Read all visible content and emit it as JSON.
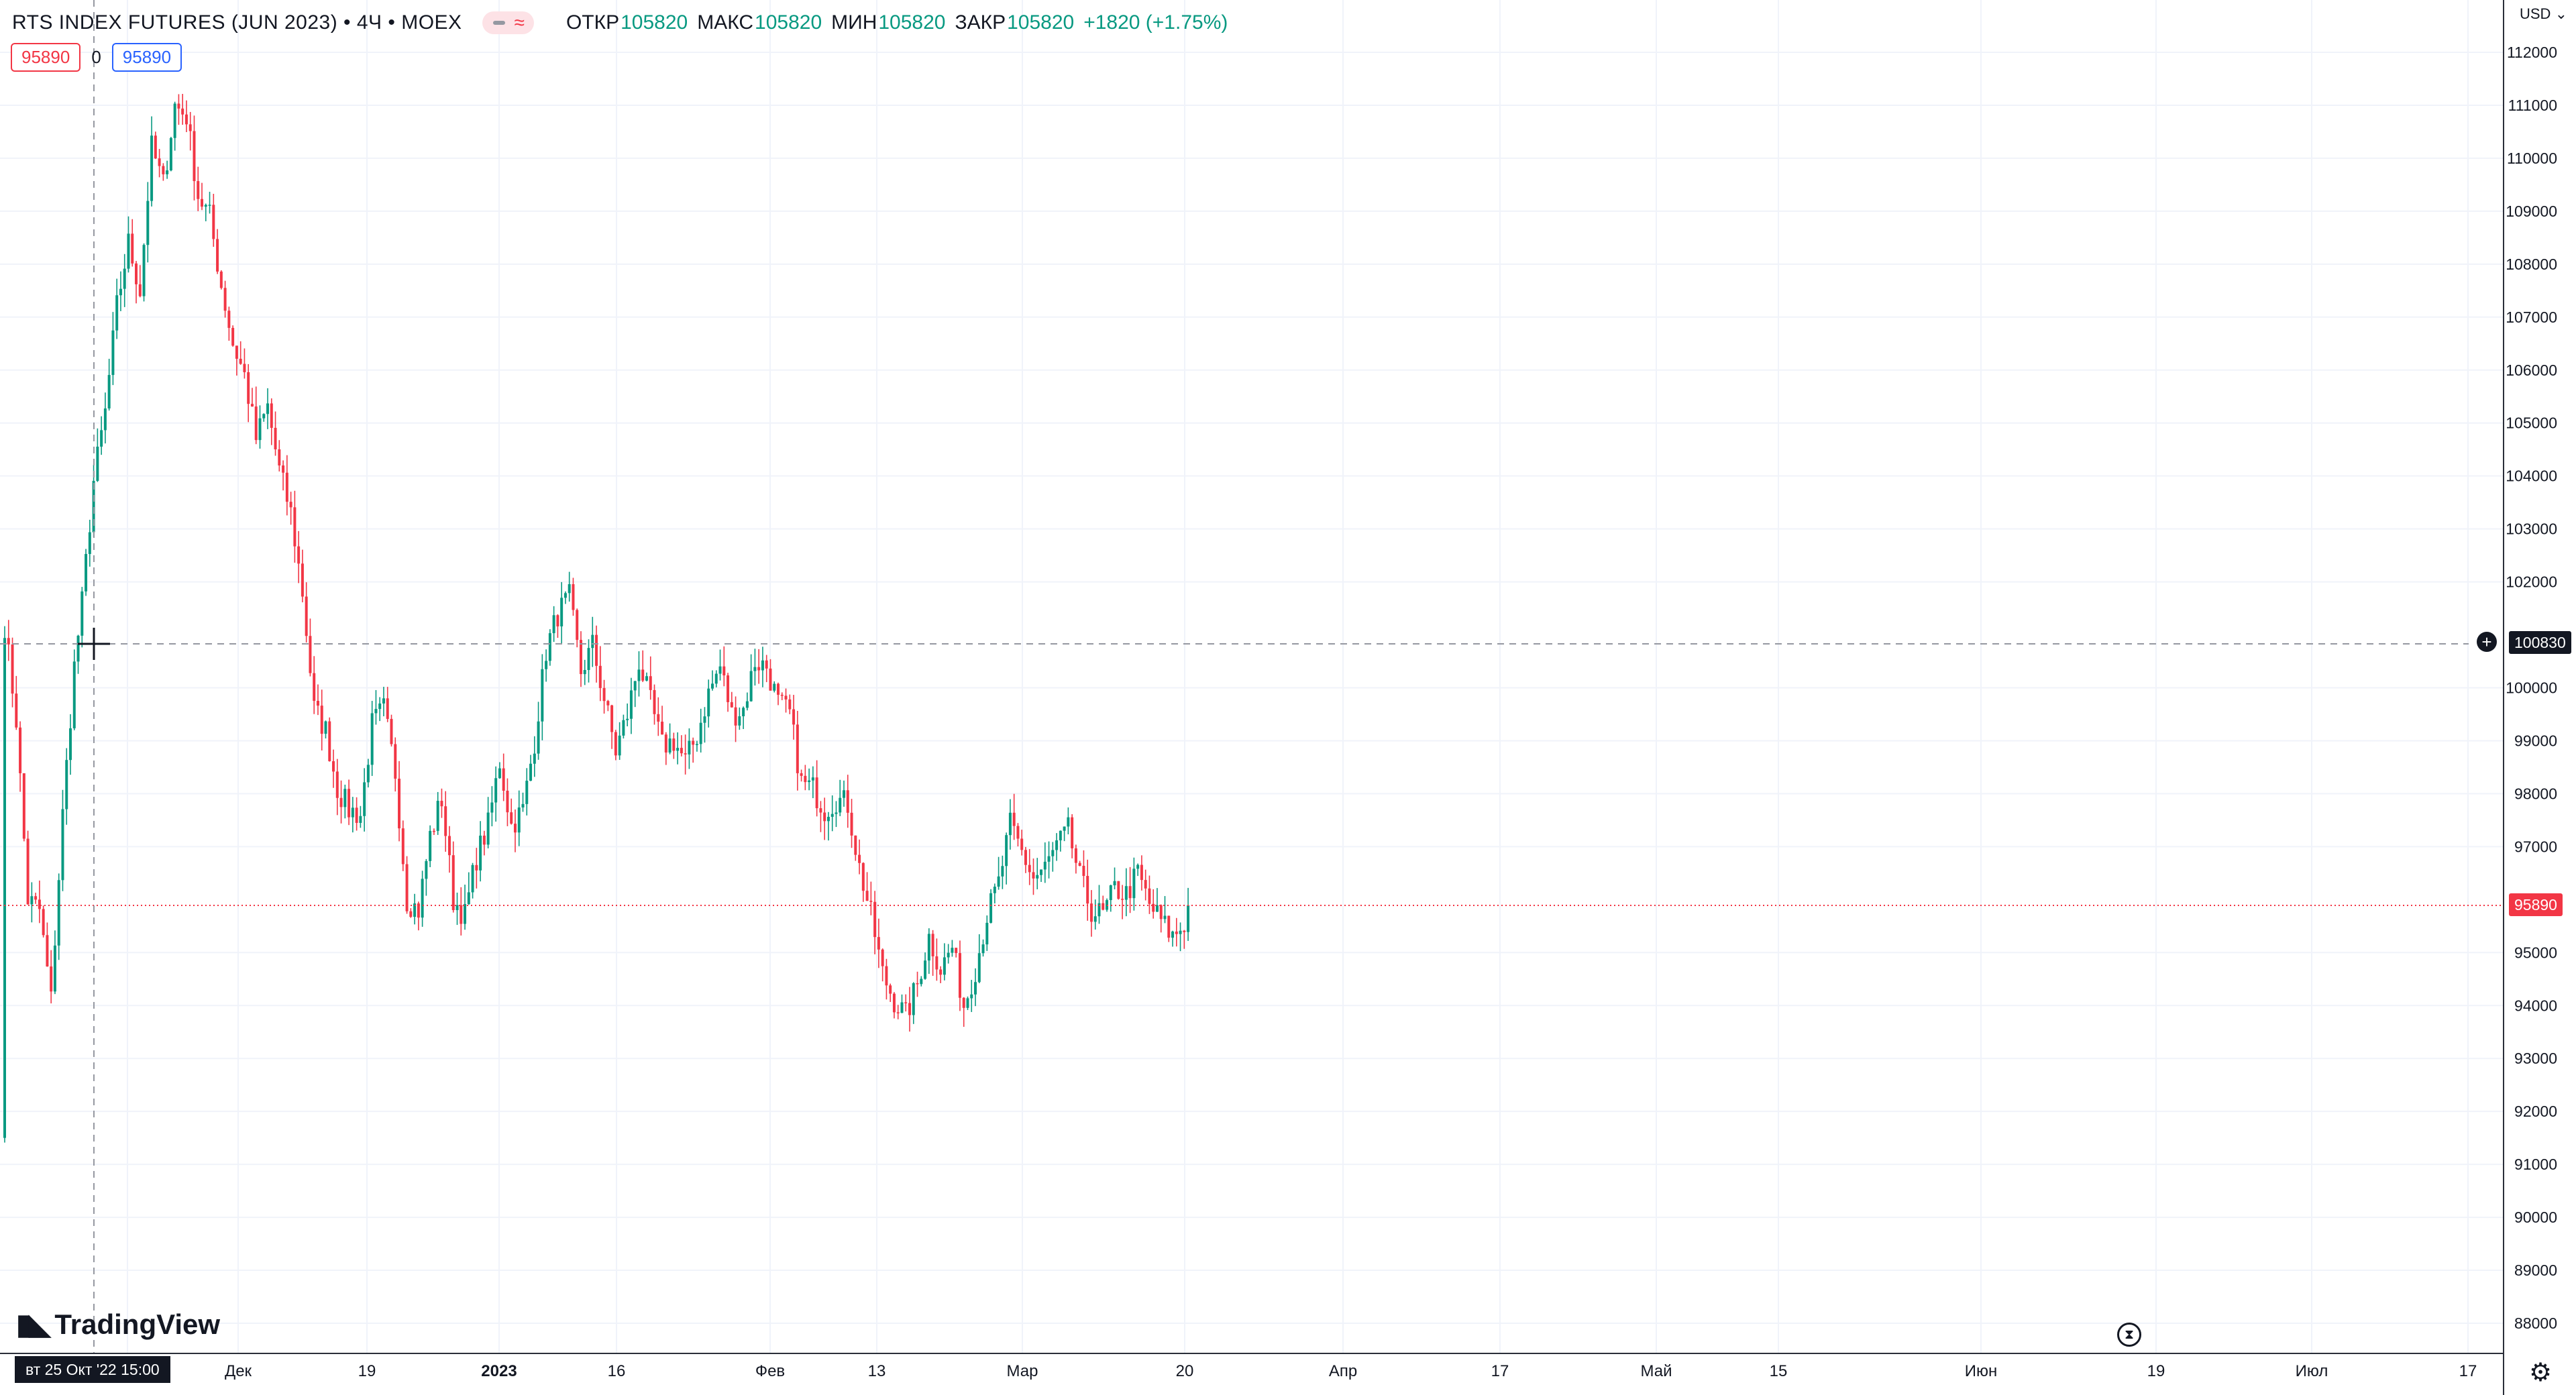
{
  "header": {
    "symbol": "RTS INDEX FUTURES (JUN 2023) • 4Ч • MOEX",
    "ohlc": {
      "open_label": "ОТКР",
      "open": "105820",
      "high_label": "МАКС",
      "high": "105820",
      "low_label": "МИН",
      "low": "105820",
      "close_label": "ЗАКР",
      "close": "105820",
      "change": "+1820 (+1.75%)"
    },
    "pill_icons": [
      "eye-icon",
      "wave-icon"
    ]
  },
  "trade": {
    "sell": "95890",
    "spread": "0",
    "buy": "95890"
  },
  "currency": "USD",
  "price_tags": {
    "last": "95890",
    "crosshair": "100830"
  },
  "crosshair_time": "вт 25 Окт '22   15:00",
  "logo": "TradingView",
  "colors": {
    "up": "#089981",
    "down": "#f23645",
    "grid": "#f0f3fa",
    "crosshair": "#9598a1"
  },
  "chart_data": {
    "type": "candlestick",
    "price_axis": {
      "ticks": [
        112000,
        111000,
        110000,
        109000,
        108000,
        107000,
        106000,
        105000,
        104000,
        103000,
        102000,
        100000,
        99000,
        98000,
        97000,
        95000,
        94000,
        93000,
        92000,
        91000,
        90000,
        89000,
        88000
      ],
      "range": [
        87500,
        112500
      ]
    },
    "time_axis": {
      "ticks": [
        "Дек",
        "19",
        "2023",
        "16",
        "Фев",
        "13",
        "Мар",
        "20",
        "Апр",
        "17",
        "Май",
        "15",
        "Июн",
        "19",
        "Июл",
        "17"
      ],
      "bold_ticks": [
        "2023"
      ]
    },
    "last_price": 95890,
    "crosshair_price": 100830,
    "start_price": 91500,
    "anchors": [
      [
        0,
        101200
      ],
      [
        3,
        99400
      ],
      [
        6,
        96000
      ],
      [
        9,
        95800
      ],
      [
        12,
        94100
      ],
      [
        15,
        97600
      ],
      [
        18,
        100400
      ],
      [
        20,
        101600
      ],
      [
        23,
        103900
      ],
      [
        26,
        105200
      ],
      [
        29,
        107200
      ],
      [
        32,
        108400
      ],
      [
        35,
        107500
      ],
      [
        38,
        110200
      ],
      [
        41,
        109500
      ],
      [
        44,
        111000
      ],
      [
        47,
        110800
      ],
      [
        50,
        109300
      ],
      [
        53,
        108900
      ],
      [
        56,
        107600
      ],
      [
        59,
        106500
      ],
      [
        62,
        105900
      ],
      [
        65,
        104700
      ],
      [
        68,
        105300
      ],
      [
        71,
        104100
      ],
      [
        74,
        103300
      ],
      [
        77,
        101800
      ],
      [
        80,
        99600
      ],
      [
        83,
        99200
      ],
      [
        86,
        98100
      ],
      [
        89,
        97700
      ],
      [
        92,
        97600
      ],
      [
        95,
        99300
      ],
      [
        98,
        99600
      ],
      [
        101,
        98400
      ],
      [
        104,
        96000
      ],
      [
        107,
        95800
      ],
      [
        110,
        97200
      ],
      [
        113,
        97900
      ],
      [
        116,
        96000
      ],
      [
        119,
        95700
      ],
      [
        122,
        96800
      ],
      [
        125,
        97400
      ],
      [
        128,
        98600
      ],
      [
        131,
        97400
      ],
      [
        134,
        97700
      ],
      [
        137,
        99000
      ],
      [
        140,
        100700
      ],
      [
        143,
        101400
      ],
      [
        146,
        101700
      ],
      [
        149,
        100300
      ],
      [
        152,
        100800
      ],
      [
        155,
        99800
      ],
      [
        158,
        98800
      ],
      [
        161,
        99500
      ],
      [
        164,
        100500
      ],
      [
        167,
        99700
      ],
      [
        170,
        98900
      ],
      [
        173,
        99000
      ],
      [
        176,
        98600
      ],
      [
        179,
        99100
      ],
      [
        182,
        99900
      ],
      [
        185,
        100400
      ],
      [
        188,
        99500
      ],
      [
        191,
        99600
      ],
      [
        194,
        100500
      ],
      [
        197,
        100400
      ],
      [
        200,
        99700
      ],
      [
        203,
        99500
      ],
      [
        206,
        98200
      ],
      [
        209,
        98100
      ],
      [
        212,
        97700
      ],
      [
        215,
        97900
      ],
      [
        218,
        97800
      ],
      [
        221,
        96600
      ],
      [
        224,
        95700
      ],
      [
        227,
        94600
      ],
      [
        230,
        94100
      ],
      [
        233,
        93800
      ],
      [
        236,
        94400
      ],
      [
        239,
        95300
      ],
      [
        242,
        94700
      ],
      [
        245,
        95100
      ],
      [
        248,
        94000
      ],
      [
        251,
        94700
      ],
      [
        254,
        95700
      ],
      [
        257,
        96300
      ],
      [
        260,
        97400
      ],
      [
        263,
        96900
      ],
      [
        266,
        96400
      ],
      [
        269,
        96600
      ],
      [
        272,
        97000
      ],
      [
        275,
        97300
      ],
      [
        278,
        96400
      ],
      [
        281,
        95800
      ],
      [
        284,
        95700
      ],
      [
        287,
        96200
      ],
      [
        290,
        96100
      ],
      [
        293,
        96500
      ],
      [
        296,
        95900
      ],
      [
        299,
        95600
      ],
      [
        302,
        95300
      ],
      [
        305,
        95550
      ],
      [
        306,
        95890
      ]
    ]
  }
}
